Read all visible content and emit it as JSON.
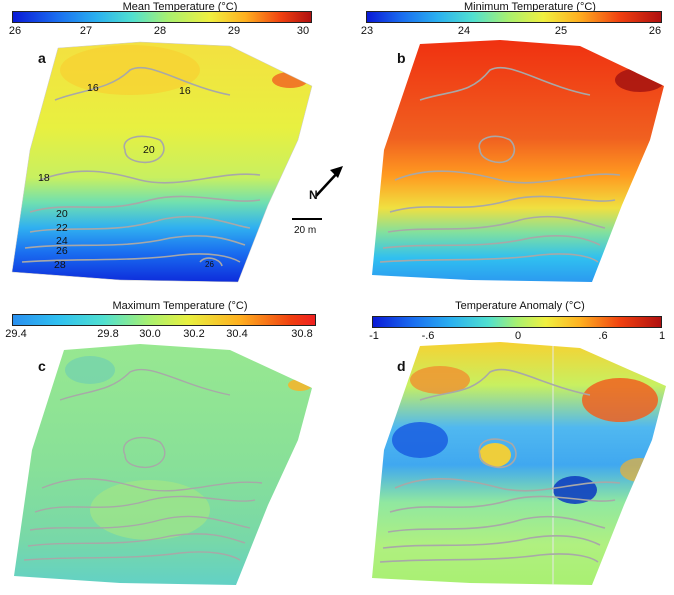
{
  "colors": {
    "jet": [
      "#0a1ad6",
      "#1a6ef0",
      "#2ab0f0",
      "#50e0d0",
      "#a8f070",
      "#f0f040",
      "#ffb020",
      "#f04010",
      "#b01010"
    ],
    "contour": "#a8a8a8"
  },
  "panels": {
    "a": {
      "label": "a",
      "title": "Mean Temperature (°C)",
      "ticks": [
        "26",
        "27",
        "28",
        "29",
        "30"
      ],
      "contour_labels": [
        "16",
        "16",
        "20",
        "18",
        "20",
        "22",
        "24",
        "26",
        "28",
        "26"
      ]
    },
    "b": {
      "label": "b",
      "title": "Minimum Temperature (°C)",
      "ticks": [
        "23",
        "24",
        "25",
        "26"
      ]
    },
    "c": {
      "label": "c",
      "title": "Maximum Temperature (°C)",
      "ticks": [
        "29.4",
        "29.8",
        "30.0",
        "30.2",
        "30.4",
        "30.8"
      ]
    },
    "d": {
      "label": "d",
      "title": "Temperature Anomaly (°C)",
      "ticks": [
        "-1",
        "-.6",
        "0",
        ".6",
        "1"
      ]
    }
  },
  "north": {
    "label": "N",
    "direction": "north-east-arrow"
  },
  "scale_bar": {
    "label": "20 m"
  }
}
